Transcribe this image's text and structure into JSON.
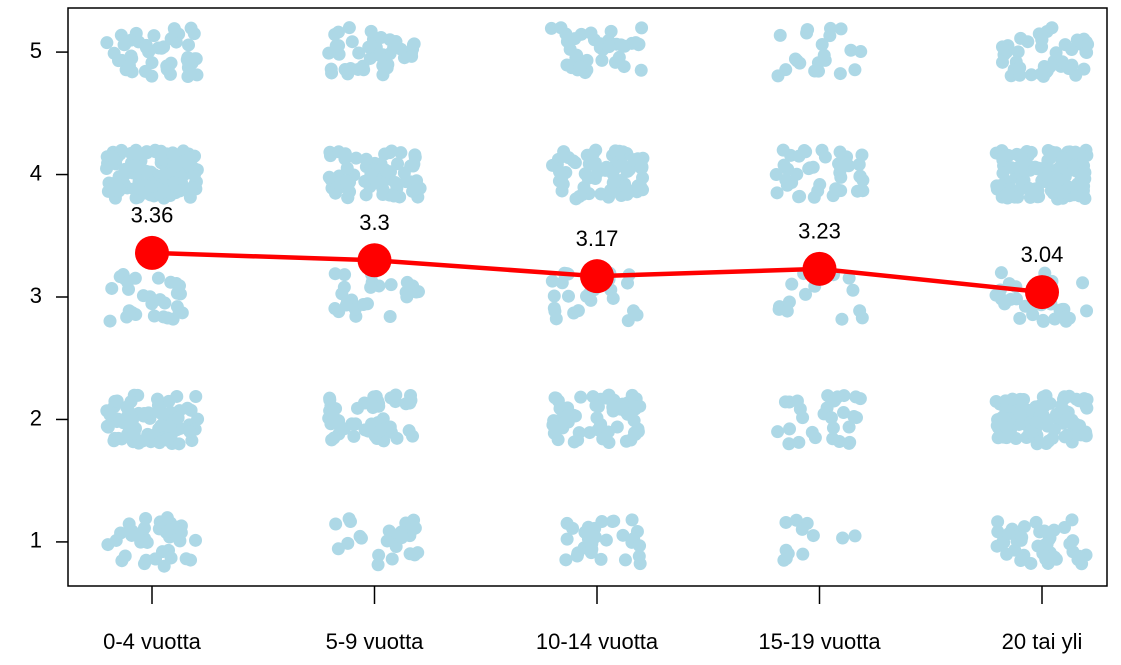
{
  "chart_data": {
    "type": "line",
    "categories": [
      "0-4 vuotta",
      "5-9 vuotta",
      "10-14 vuotta",
      "15-19 vuotta",
      "20 tai yli"
    ],
    "points": {
      "color": "#add8e6",
      "levels": [
        1,
        2,
        3,
        4,
        5
      ],
      "counts": [
        [
          40,
          80,
          30,
          120,
          50
        ],
        [
          25,
          50,
          25,
          70,
          40
        ],
        [
          30,
          60,
          25,
          80,
          40
        ],
        [
          12,
          30,
          15,
          40,
          22
        ],
        [
          45,
          110,
          30,
          110,
          45
        ]
      ]
    },
    "series": [
      {
        "color": "#ff0000",
        "values": [
          3.36,
          3.3,
          3.17,
          3.23,
          3.04
        ]
      }
    ],
    "ylim": [
      0.64,
      5.36
    ],
    "yticks": [
      1,
      2,
      3,
      4,
      5
    ]
  }
}
